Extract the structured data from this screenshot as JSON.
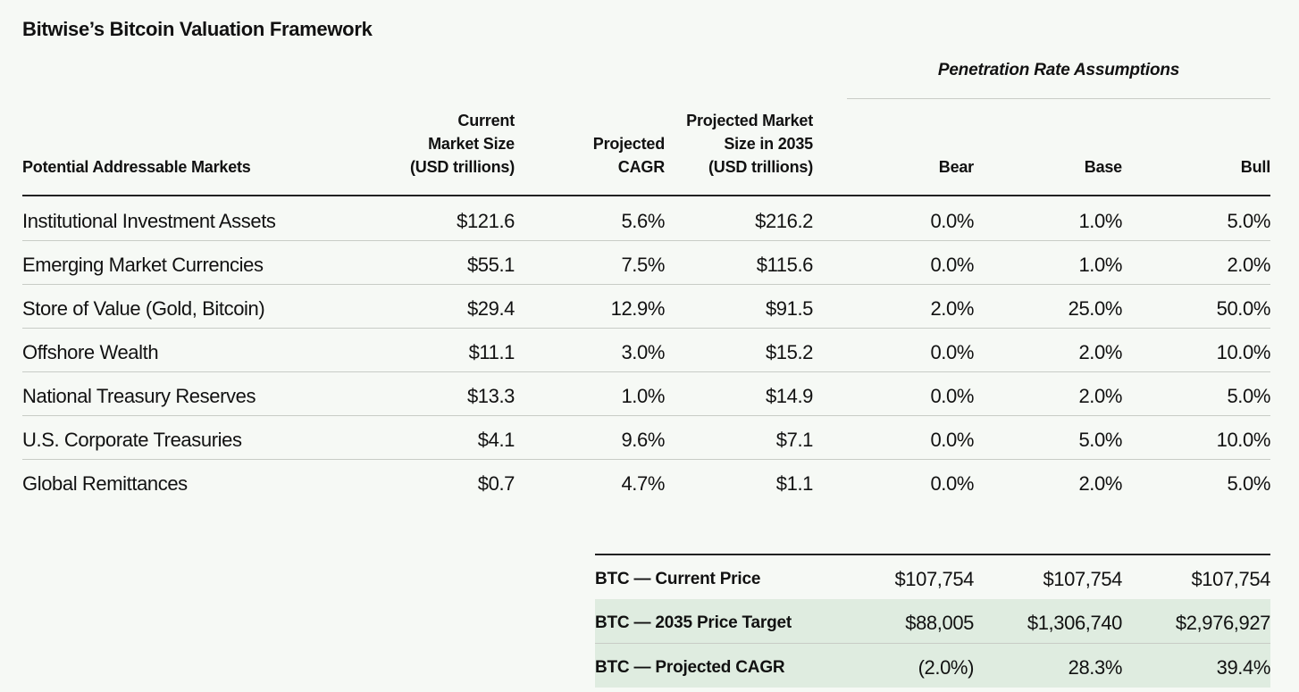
{
  "title": "Bitwise’s Bitcoin Valuation Framework",
  "group_header": "Penetration Rate Assumptions",
  "columns": {
    "market": [
      "Potential Addressable Markets"
    ],
    "current_size": [
      "Current",
      "Market Size",
      "(USD trillions)"
    ],
    "cagr": [
      "Projected",
      "CAGR"
    ],
    "projected_size": [
      "Projected Market",
      "Size in 2035",
      "(USD trillions)"
    ],
    "bear": [
      "Bear"
    ],
    "base": [
      "Base"
    ],
    "bull": [
      "Bull"
    ]
  },
  "rows": [
    {
      "market": "Institutional Investment Assets",
      "current_size": "$121.6",
      "cagr": "5.6%",
      "projected_size": "$216.2",
      "bear": "0.0%",
      "base": "1.0%",
      "bull": "5.0%"
    },
    {
      "market": "Emerging Market Currencies",
      "current_size": "$55.1",
      "cagr": "7.5%",
      "projected_size": "$115.6",
      "bear": "0.0%",
      "base": "1.0%",
      "bull": "2.0%"
    },
    {
      "market": "Store of Value (Gold, Bitcoin)",
      "current_size": "$29.4",
      "cagr": "12.9%",
      "projected_size": "$91.5",
      "bear": "2.0%",
      "base": "25.0%",
      "bull": "50.0%"
    },
    {
      "market": "Offshore Wealth",
      "current_size": "$11.1",
      "cagr": "3.0%",
      "projected_size": "$15.2",
      "bear": "0.0%",
      "base": "2.0%",
      "bull": "10.0%"
    },
    {
      "market": "National Treasury Reserves",
      "current_size": "$13.3",
      "cagr": "1.0%",
      "projected_size": "$14.9",
      "bear": "0.0%",
      "base": "2.0%",
      "bull": "5.0%"
    },
    {
      "market": "U.S. Corporate Treasuries",
      "current_size": "$4.1",
      "cagr": "9.6%",
      "projected_size": "$7.1",
      "bear": "0.0%",
      "base": "5.0%",
      "bull": "10.0%"
    },
    {
      "market": "Global Remittances",
      "current_size": "$0.7",
      "cagr": "4.7%",
      "projected_size": "$1.1",
      "bear": "0.0%",
      "base": "2.0%",
      "bull": "5.0%"
    }
  ],
  "summary": [
    {
      "label": "BTC — Current Price",
      "bear": "$107,754",
      "base": "$107,754",
      "bull": "$107,754"
    },
    {
      "label": "BTC — 2035 Price Target",
      "bear": "$88,005",
      "base": "$1,306,740",
      "bull": "$2,976,927"
    },
    {
      "label": "BTC — Projected CAGR",
      "bear": "(2.0%)",
      "base": "28.3%",
      "bull": "39.4%"
    }
  ],
  "colors": {
    "background": "#f6f9f5",
    "summary_shade": "#dfece0",
    "rule_light": "#c8ccc6",
    "rule_dark": "#222222"
  }
}
